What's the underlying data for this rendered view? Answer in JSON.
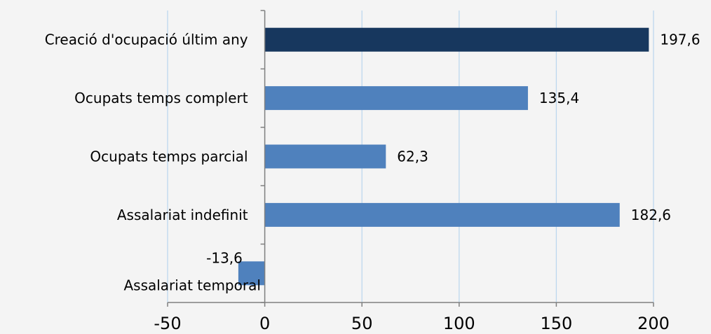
{
  "chart_data": {
    "type": "bar",
    "orientation": "horizontal",
    "categories": [
      "Creació d'ocupació últim any",
      "Ocupats temps complert",
      "Ocupats temps parcial",
      "Assalariat indefinit",
      "Assalariat temporal"
    ],
    "values": [
      197.6,
      135.4,
      62.3,
      182.6,
      -13.6
    ],
    "value_labels": [
      "197,6",
      "135,4",
      "62,3",
      "182,6",
      "-13,6"
    ],
    "bar_colors": [
      "#17375e",
      "#4f81bd",
      "#4f81bd",
      "#4f81bd",
      "#4f81bd"
    ],
    "xlim": [
      -50,
      200
    ],
    "xticks": [
      -50,
      0,
      50,
      100,
      150,
      200
    ],
    "xtick_labels": [
      "-50",
      "0",
      "50",
      "100",
      "150",
      "200"
    ],
    "title": "",
    "xlabel": "",
    "ylabel": "",
    "grid": "vertical",
    "grid_color": "#bdd7ee",
    "axis_color": "#808080",
    "legend": "none"
  }
}
